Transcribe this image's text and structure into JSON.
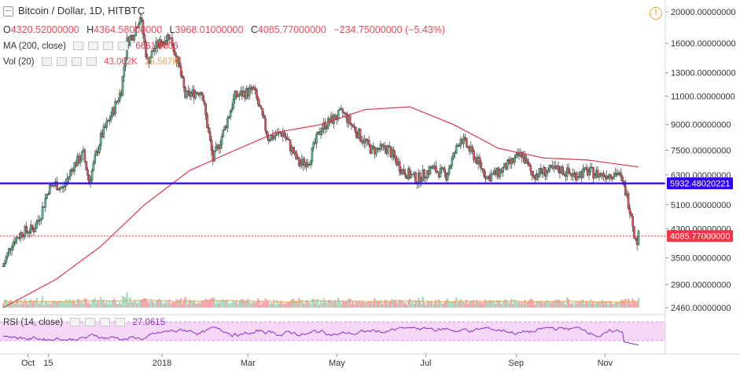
{
  "header": {
    "symbol_title": "Bitcoin / Dollar, 1D, HITBTC",
    "ohlc": {
      "open_label": "O",
      "open": "4320.52000000",
      "high_label": "H",
      "high": "4364.58000000",
      "low_label": "L",
      "low": "3968.01000000",
      "close_label": "C",
      "close": "4085.77000000",
      "change": "−234.75000000 (−5.43%)"
    },
    "ma": {
      "label": "MA (200, close)",
      "value": "6661.0806"
    },
    "vol": {
      "label": "Vol (20)",
      "value1": "43.062K",
      "value2": "25.567K"
    },
    "rsi": {
      "label": "RSI (14, close)",
      "value": "27.0615"
    }
  },
  "price_axis": {
    "ticks": [
      "20000.00000000",
      "16000.00000000",
      "13000.00000000",
      "11000.00000000",
      "9000.00000000",
      "7500.00000000",
      "6300.00000000",
      "5100.00000000",
      "4300.00000000",
      "3500.00000000",
      "2900.00000000",
      "2460.00000000"
    ],
    "horizontal_line_label": "5932.48020221",
    "last_price_label": "4085.77000000"
  },
  "time_axis": {
    "ticks": [
      "Oct",
      "15",
      "2018",
      "Mar",
      "May",
      "Jul",
      "Sep",
      "Nov"
    ]
  },
  "colors": {
    "up": "#53b987",
    "down": "#eb4d5c",
    "candle_outline": "#333333",
    "ma_line": "#e0344b",
    "horizontal_line": "#2f00ff",
    "last_price": "#f23645",
    "vol_up": "#a9dcc3",
    "vol_down": "#f5a6ae",
    "vol_ma": "#f0a04b",
    "rsi_line": "#8b2fc9",
    "rsi_band": "#f4d8f6"
  },
  "chart_data": {
    "type": "candlestick",
    "title": "Bitcoin / Dollar, 1D, HITBTC",
    "x_range": [
      "2017-09-14",
      "2018-11-24"
    ],
    "y_range": [
      2460,
      20000
    ],
    "y_scale": "log",
    "price_series": [
      {
        "date": "2017-09-14",
        "close": 3300
      },
      {
        "date": "2017-09-20",
        "close": 3900
      },
      {
        "date": "2017-09-27",
        "close": 4200
      },
      {
        "date": "2017-10-05",
        "close": 4300
      },
      {
        "date": "2017-10-10",
        "close": 4800
      },
      {
        "date": "2017-10-15",
        "close": 5700
      },
      {
        "date": "2017-10-20",
        "close": 5900
      },
      {
        "date": "2017-10-25",
        "close": 5700
      },
      {
        "date": "2017-11-01",
        "close": 6700
      },
      {
        "date": "2017-11-08",
        "close": 7300
      },
      {
        "date": "2017-11-12",
        "close": 6000
      },
      {
        "date": "2017-11-20",
        "close": 8200
      },
      {
        "date": "2017-11-28",
        "close": 9800
      },
      {
        "date": "2017-12-04",
        "close": 11500
      },
      {
        "date": "2017-12-08",
        "close": 16200
      },
      {
        "date": "2017-12-12",
        "close": 17000
      },
      {
        "date": "2017-12-17",
        "close": 19500
      },
      {
        "date": "2017-12-22",
        "close": 14000
      },
      {
        "date": "2017-12-27",
        "close": 15500
      },
      {
        "date": "2018-01-06",
        "close": 17000
      },
      {
        "date": "2018-01-12",
        "close": 14000
      },
      {
        "date": "2018-01-17",
        "close": 11000
      },
      {
        "date": "2018-01-28",
        "close": 11500
      },
      {
        "date": "2018-02-05",
        "close": 7000
      },
      {
        "date": "2018-02-12",
        "close": 8500
      },
      {
        "date": "2018-02-20",
        "close": 11000
      },
      {
        "date": "2018-03-05",
        "close": 11500
      },
      {
        "date": "2018-03-15",
        "close": 8200
      },
      {
        "date": "2018-03-25",
        "close": 8500
      },
      {
        "date": "2018-04-05",
        "close": 6800
      },
      {
        "date": "2018-04-12",
        "close": 7000
      },
      {
        "date": "2018-04-20",
        "close": 8800
      },
      {
        "date": "2018-05-05",
        "close": 9800
      },
      {
        "date": "2018-05-15",
        "close": 8500
      },
      {
        "date": "2018-05-25",
        "close": 7500
      },
      {
        "date": "2018-06-05",
        "close": 7600
      },
      {
        "date": "2018-06-15",
        "close": 6500
      },
      {
        "date": "2018-06-25",
        "close": 6100
      },
      {
        "date": "2018-07-05",
        "close": 6600
      },
      {
        "date": "2018-07-15",
        "close": 6300
      },
      {
        "date": "2018-07-25",
        "close": 8200
      },
      {
        "date": "2018-08-05",
        "close": 7000
      },
      {
        "date": "2018-08-12",
        "close": 6200
      },
      {
        "date": "2018-08-20",
        "close": 6400
      },
      {
        "date": "2018-09-05",
        "close": 7300
      },
      {
        "date": "2018-09-12",
        "close": 6300
      },
      {
        "date": "2018-09-20",
        "close": 6450
      },
      {
        "date": "2018-10-01",
        "close": 6550
      },
      {
        "date": "2018-10-10",
        "close": 6300
      },
      {
        "date": "2018-10-20",
        "close": 6450
      },
      {
        "date": "2018-10-30",
        "close": 6300
      },
      {
        "date": "2018-11-10",
        "close": 6400
      },
      {
        "date": "2018-11-15",
        "close": 5600
      },
      {
        "date": "2018-11-19",
        "close": 4800
      },
      {
        "date": "2018-11-22",
        "close": 3900
      },
      {
        "date": "2018-11-24",
        "close": 4086
      }
    ],
    "ma200_series": [
      {
        "date": "2017-09-14",
        "value": 2460
      },
      {
        "date": "2017-10-20",
        "value": 3000
      },
      {
        "date": "2017-11-20",
        "value": 3800
      },
      {
        "date": "2017-12-20",
        "value": 5100
      },
      {
        "date": "2018-01-20",
        "value": 6500
      },
      {
        "date": "2018-02-20",
        "value": 7500
      },
      {
        "date": "2018-03-20",
        "value": 8500
      },
      {
        "date": "2018-04-20",
        "value": 9000
      },
      {
        "date": "2018-05-20",
        "value": 10000
      },
      {
        "date": "2018-06-20",
        "value": 10200
      },
      {
        "date": "2018-07-20",
        "value": 9000
      },
      {
        "date": "2018-08-20",
        "value": 7600
      },
      {
        "date": "2018-09-20",
        "value": 7100
      },
      {
        "date": "2018-10-20",
        "value": 7000
      },
      {
        "date": "2018-11-24",
        "value": 6661
      }
    ],
    "horizontal_level": 5932.48020221,
    "last_close": 4085.77,
    "rsi_last": 27.0615,
    "legend": "top-left",
    "grid": false
  }
}
